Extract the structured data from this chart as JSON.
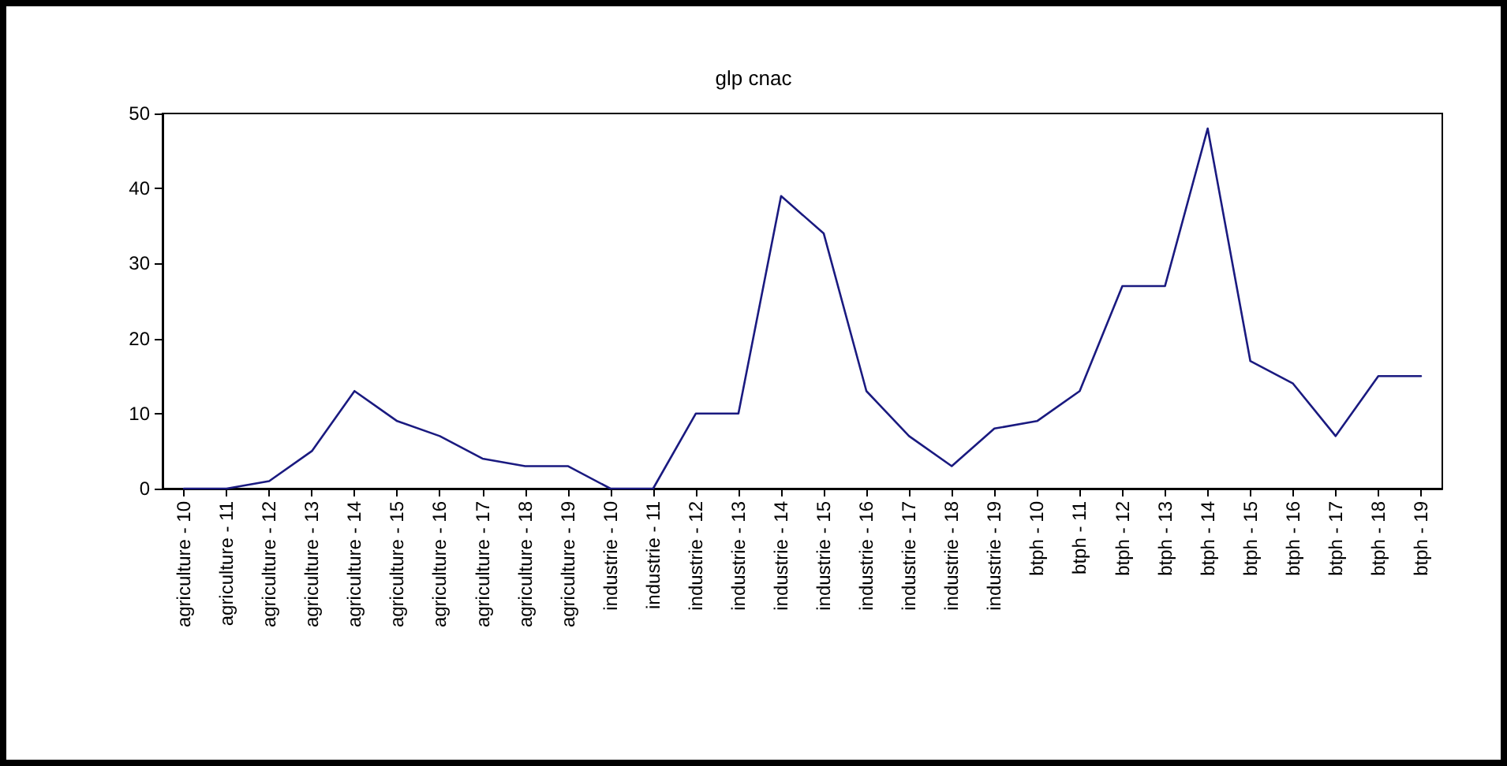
{
  "chart_data": {
    "type": "line",
    "title": "glp cnac",
    "categories": [
      "agriculture - 10",
      "agriculture - 11",
      "agriculture - 12",
      "agriculture - 13",
      "agriculture - 14",
      "agriculture - 15",
      "agriculture - 16",
      "agriculture - 17",
      "agriculture - 18",
      "agriculture - 19",
      "industrie - 10",
      "industrie - 11",
      "industrie - 12",
      "industrie - 13",
      "industrie - 14",
      "industrie - 15",
      "industrie - 16",
      "industrie - 17",
      "industrie - 18",
      "industrie - 19",
      "btph - 10",
      "btph - 11",
      "btph - 12",
      "btph - 13",
      "btph - 14",
      "btph - 15",
      "btph - 16",
      "btph - 17",
      "btph - 18",
      "btph - 19"
    ],
    "series": [
      {
        "color": "#1a1a80",
        "values": [
          0,
          0,
          1,
          5,
          13,
          9,
          7,
          4,
          3,
          3,
          0,
          0,
          10,
          10,
          39,
          34,
          13,
          7,
          3,
          8,
          9,
          13,
          27,
          27,
          48,
          17,
          14,
          7,
          15,
          15
        ]
      }
    ],
    "ylim": [
      0,
      50
    ],
    "yticks": [
      0,
      10,
      20,
      30,
      40,
      50
    ],
    "grid": false,
    "marker": "none",
    "line_style": "solid"
  }
}
